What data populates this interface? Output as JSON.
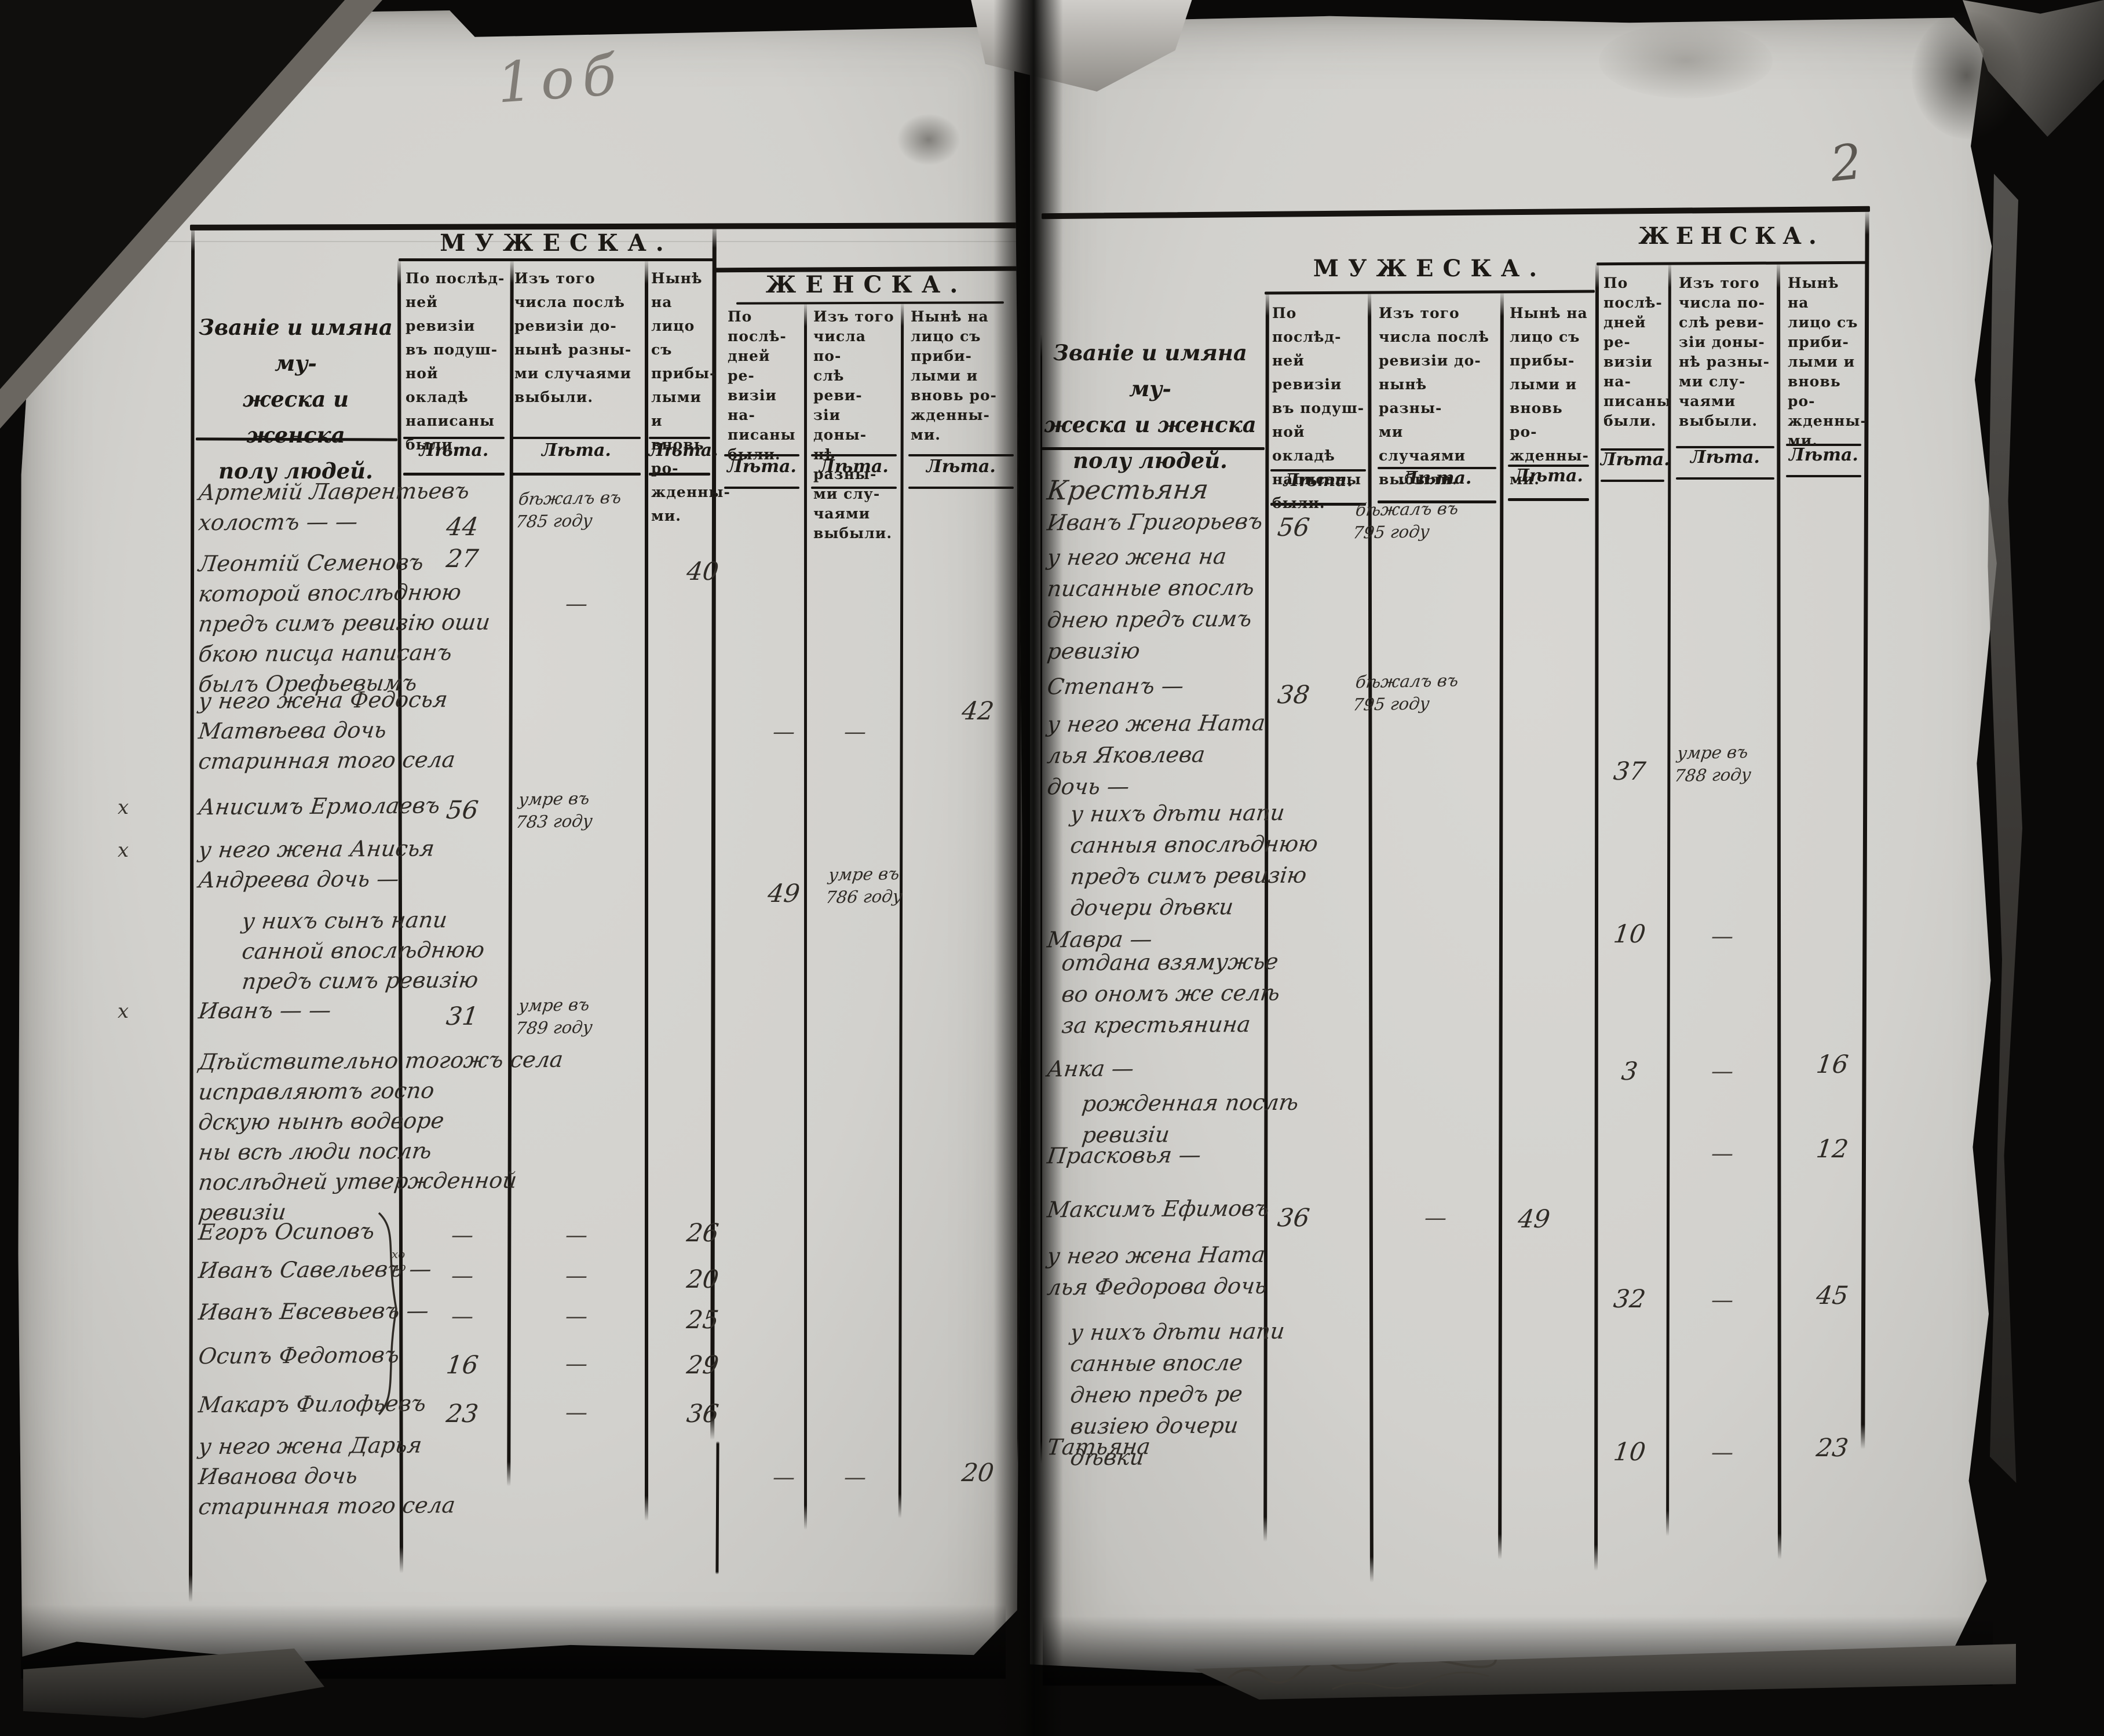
{
  "scan": {
    "left_folio": "1об",
    "right_folio": "2"
  },
  "table_header": {
    "name_col": [
      "Званіе и имяна му-",
      "жеска и женска",
      "полу людей."
    ],
    "male_title": "МУЖЕСКА.",
    "female_title": "ЖЕНСКА.",
    "age_label": "Лѣта.",
    "male_col1": [
      "По послѣд-",
      "ней ревизіи",
      "въ подуш-",
      "ной окладѣ",
      "написаны",
      "были."
    ],
    "male_col2": [
      "Изъ того",
      "числа послѣ",
      "ревизіи до-",
      "нынѣ разны-",
      "ми случаями",
      "выбыли."
    ],
    "male_col3": [
      "Нынѣ на",
      "лицо съ",
      "прибы-",
      "лыми и",
      "вновь ро-",
      "жденны-",
      "ми."
    ],
    "female_col1": [
      "По послѣ-",
      "дней ре-",
      "визіи на-",
      "писаны",
      "были."
    ],
    "female_col2": [
      "Изъ того",
      "числа по-",
      "слѣ реви-",
      "зіи доны-",
      "нѣ разны-",
      "ми слу-",
      "чаями",
      "выбыли."
    ],
    "female_col3": [
      "Нынѣ на",
      "лицо съ",
      "приби-",
      "лыми и",
      "вновь ро-",
      "жденны-",
      "ми."
    ]
  },
  "annotations": {
    "brace_note": [
      "хо",
      "ло"
    ]
  },
  "left_page": {
    "rows": [
      {
        "lines": [
          "Артемій Лаврентьевъ",
          "холостъ  —      —"
        ],
        "m1": "44",
        "m2": "бѣжалъ въ|785 году"
      },
      {
        "lines": [
          "Леонтій Семеновъ",
          "которой впослѣднюю",
          "предъ симъ ревизію оши",
          "бкою писца написанъ",
          "былъ Орефьевымъ"
        ],
        "m1": "27",
        "m2": "—",
        "m3": "40"
      },
      {
        "lines": [
          "у него жена Федосья",
          "Матвѣева дочь",
          "старинная того села"
        ],
        "f1": "—",
        "f2": "—",
        "f3": "42"
      },
      {
        "lines": [
          "Анисимъ Ермолаевъ"
        ],
        "mark": "х",
        "m1": "56",
        "m2": "умре въ|783 году"
      },
      {
        "lines": [
          "у него жена Анисья",
          "Андреева дочь  —"
        ],
        "mark": "х",
        "f1": "49",
        "f2": "умре въ|786 году"
      },
      {
        "lines": [
          "у нихъ сынъ напи",
          "санной впослѣднюю",
          "предъ симъ ревизію"
        ]
      },
      {
        "lines": [
          "Иванъ   —      —"
        ],
        "mark": "х",
        "m1": "31",
        "m2": "умре въ|789 году"
      },
      {
        "lines": [
          "Дѣйствительно тогожъ села",
          "исправляютъ госпо",
          "дскую нынѣ водворе",
          "ны всѣ люди послѣ",
          "послѣдней утвержденной",
          "ревизіи"
        ]
      },
      {
        "lines": [
          "Егоръ Осиповъ"
        ],
        "m1": "—",
        "m2": "—",
        "m3": "26"
      },
      {
        "lines": [
          "Иванъ Савельевъ  —"
        ],
        "m1": "—",
        "m2": "—",
        "m3": "20"
      },
      {
        "lines": [
          "Иванъ Евсевьевъ  —"
        ],
        "m1": "—",
        "m2": "—",
        "m3": "25"
      },
      {
        "lines": [
          "Осипъ Федотовъ"
        ],
        "m1": "16",
        "m2": "—",
        "m3": "29"
      },
      {
        "lines": [
          "Макаръ Филофьевъ"
        ],
        "m1": "23",
        "m2": "—",
        "m3": "36"
      },
      {
        "lines": [
          "у него жена Дарья",
          "Иванова дочь",
          "старинная того села"
        ],
        "f1": "—",
        "f2": "—",
        "f3": "20"
      }
    ]
  },
  "right_page": {
    "rows": [
      {
        "lines": [
          "Крестьяня"
        ]
      },
      {
        "lines": [
          "Иванъ Григорьевъ"
        ],
        "m1": "56",
        "m2": "бѣжалъ въ|795 году"
      },
      {
        "lines": [
          "у него жена на",
          "писанные впослѣ",
          "днею предъ симъ",
          "ревизію"
        ]
      },
      {
        "lines": [
          "Степанъ   —"
        ],
        "m1": "38",
        "m2": "бѣжалъ въ|795 году"
      },
      {
        "lines": [
          "у него жена Ната",
          "лья Яковлева",
          "дочь  —"
        ],
        "f1": "37",
        "f2": "умре въ|788 году"
      },
      {
        "lines": [
          "у нихъ дѣти напи",
          "санныя впослѣднюю",
          "предъ симъ ревизію",
          "дочери дѣвки"
        ]
      },
      {
        "lines": [
          "Мавра   —"
        ],
        "f1": "10",
        "f2": "—"
      },
      {
        "lines": [
          "отдана взямужье",
          "во ономъ же селѣ",
          "за крестьянина"
        ]
      },
      {
        "lines": [
          "Анка   —"
        ],
        "f1": "3",
        "f2": "—",
        "f3": "16"
      },
      {
        "lines": [
          "рожденная послѣ",
          "ревизіи"
        ]
      },
      {
        "lines": [
          "Прасковья  —"
        ],
        "f2": "—",
        "f3": "12"
      },
      {
        "lines": [
          "Максимъ Ефимовъ"
        ],
        "m1": "36",
        "m2": "—",
        "m3": "49"
      },
      {
        "lines": [
          "у него жена Ната",
          "лья Федорова дочь"
        ],
        "f1": "32",
        "f2": "—",
        "f3": "45"
      },
      {
        "lines": [
          "у нихъ дѣти напи",
          "санные впосле",
          "днею предъ ре",
          "визіею дочери",
          "дѣвки"
        ]
      },
      {
        "lines": [
          "Татьяна"
        ],
        "f1": "10",
        "f2": "—",
        "f3": "23"
      }
    ]
  }
}
